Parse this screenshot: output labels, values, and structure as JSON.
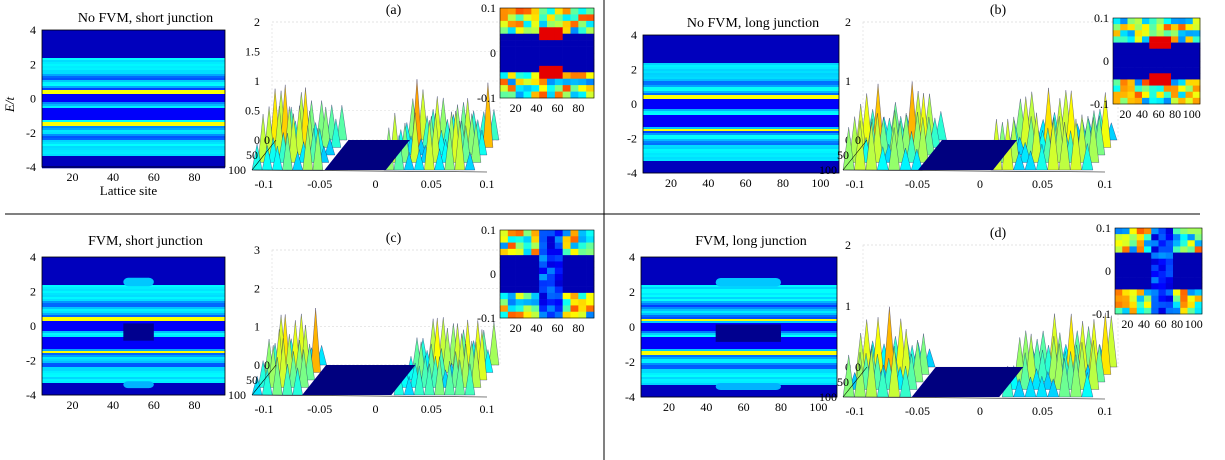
{
  "figure": {
    "panels": [
      {
        "key": "a",
        "panel_label": "(a)",
        "heatmap_title": "No FVM, short junction",
        "heatmap_ylabel": "E/t",
        "heatmap_xlabel": "Lattice site",
        "heatmap_xticks": [
          "20",
          "40",
          "60",
          "80"
        ],
        "heatmap_yticks": [
          "4",
          "2",
          "0",
          "-2",
          "-4"
        ],
        "surface_zticks": [
          "2",
          "1.5",
          "1",
          "0.5",
          "0"
        ],
        "surface_depth_ticks": [
          "0",
          "50",
          "100"
        ],
        "surface_xticks": [
          "-0.1",
          "-0.05",
          "0",
          "0.05",
          "0.1"
        ],
        "inset_yticks": [
          "0.1",
          "0",
          "-0.1"
        ],
        "inset_xticks": [
          "20",
          "40",
          "60",
          "80"
        ]
      },
      {
        "key": "b",
        "panel_label": "(b)",
        "heatmap_title": "No FVM, long junction",
        "heatmap_ylabel": "",
        "heatmap_xlabel": "",
        "heatmap_xticks": [
          "20",
          "40",
          "60",
          "80",
          "100"
        ],
        "heatmap_yticks": [
          "4",
          "2",
          "0",
          "-2",
          "-4"
        ],
        "surface_zticks": [
          "2",
          "1",
          "0"
        ],
        "surface_depth_ticks": [
          "0",
          "50",
          "100"
        ],
        "surface_xticks": [
          "-0.1",
          "-0.05",
          "0",
          "0.05",
          "0.1"
        ],
        "inset_yticks": [
          "0.1",
          "0",
          "-0.1"
        ],
        "inset_xticks": [
          "20",
          "40",
          "60",
          "80",
          "100"
        ]
      },
      {
        "key": "c",
        "panel_label": "(c)",
        "heatmap_title": "FVM, short junction",
        "heatmap_ylabel": "",
        "heatmap_xlabel": "",
        "heatmap_xticks": [
          "20",
          "40",
          "60",
          "80"
        ],
        "heatmap_yticks": [
          "4",
          "2",
          "0",
          "-2",
          "-4"
        ],
        "surface_zticks": [
          "3",
          "2",
          "1",
          "0"
        ],
        "surface_depth_ticks": [
          "0",
          "50",
          "100"
        ],
        "surface_xticks": [
          "-0.1",
          "-0.05",
          "0",
          "0.05",
          "0.1"
        ],
        "inset_yticks": [
          "0.1",
          "0",
          "-0.1"
        ],
        "inset_xticks": [
          "20",
          "40",
          "60",
          "80"
        ]
      },
      {
        "key": "d",
        "panel_label": "(d)",
        "heatmap_title": "FVM, long junction",
        "heatmap_ylabel": "",
        "heatmap_xlabel": "",
        "heatmap_xticks": [
          "20",
          "40",
          "60",
          "80",
          "100"
        ],
        "heatmap_yticks": [
          "4",
          "2",
          "0",
          "-2",
          "-4"
        ],
        "surface_zticks": [
          "2",
          "1",
          "0"
        ],
        "surface_depth_ticks": [
          "0",
          "50",
          "100"
        ],
        "surface_xticks": [
          "-0.1",
          "-0.05",
          "0",
          "0.05",
          "0.1"
        ],
        "inset_yticks": [
          "0.1",
          "0",
          "-0.1"
        ],
        "inset_xticks": [
          "20",
          "40",
          "60",
          "80",
          "100"
        ]
      }
    ]
  },
  "chart_data": [
    {
      "type": "heatmap",
      "panel": "a",
      "title": "No FVM, short junction",
      "xlabel": "Lattice site",
      "ylabel": "E/t",
      "xlim": [
        5,
        95
      ],
      "ylim": [
        -4,
        4
      ],
      "bright_lines_E": [
        0.4,
        -1.5
      ],
      "continuum_edges_E": [
        2.4,
        -3.3
      ],
      "colormap": [
        "#00007f",
        "#0000ff",
        "#00ffff",
        "#ffff00",
        "#ff0000",
        "#7f0000"
      ]
    },
    {
      "type": "surface",
      "panel": "a",
      "xlim": [
        -0.1,
        0.1
      ],
      "depth_lim": [
        0,
        100
      ],
      "zlim": [
        0,
        2
      ],
      "gap": [
        -0.035,
        0.02
      ]
    },
    {
      "type": "heatmap",
      "panel": "a-inset",
      "xlim": [
        5,
        95
      ],
      "ylim": [
        -0.1,
        0.1
      ]
    },
    {
      "type": "heatmap",
      "panel": "b",
      "title": "No FVM, long junction",
      "xlabel": "",
      "ylabel": "",
      "xlim": [
        5,
        110
      ],
      "ylim": [
        -4,
        4
      ],
      "bright_lines_E": [
        0.4,
        -1.5
      ],
      "continuum_edges_E": [
        2.4,
        -3.3
      ]
    },
    {
      "type": "surface",
      "panel": "b",
      "xlim": [
        -0.1,
        0.1
      ],
      "depth_lim": [
        0,
        100
      ],
      "zlim": [
        0,
        2
      ],
      "gap": [
        -0.04,
        0.02
      ]
    },
    {
      "type": "heatmap",
      "panel": "b-inset",
      "xlim": [
        5,
        110
      ],
      "ylim": [
        -0.1,
        0.1
      ]
    },
    {
      "type": "heatmap",
      "panel": "c",
      "title": "FVM, short junction",
      "xlabel": "",
      "ylabel": "",
      "xlim": [
        5,
        95
      ],
      "ylim": [
        -4,
        4
      ],
      "bright_lines_E": [
        0.4,
        -1.5
      ],
      "continuum_edges_E": [
        2.4,
        -3.3
      ],
      "junction_sites": [
        45,
        60
      ]
    },
    {
      "type": "surface",
      "panel": "c",
      "xlim": [
        -0.1,
        0.1
      ],
      "depth_lim": [
        0,
        100
      ],
      "zlim": [
        0,
        3
      ],
      "gap": [
        -0.055,
        0.025
      ]
    },
    {
      "type": "heatmap",
      "panel": "c-inset",
      "xlim": [
        5,
        95
      ],
      "ylim": [
        -0.1,
        0.1
      ]
    },
    {
      "type": "heatmap",
      "panel": "d",
      "title": "FVM, long junction",
      "xlabel": "",
      "ylabel": "",
      "xlim": [
        5,
        110
      ],
      "ylim": [
        -4,
        4
      ],
      "bright_lines_E": [
        0.4,
        -1.5
      ],
      "continuum_edges_E": [
        2.4,
        -3.3
      ],
      "junction_sites": [
        45,
        80
      ]
    },
    {
      "type": "surface",
      "panel": "d",
      "xlim": [
        -0.1,
        0.1
      ],
      "depth_lim": [
        0,
        100
      ],
      "zlim": [
        0,
        2
      ],
      "gap": [
        -0.045,
        0.025
      ]
    },
    {
      "type": "heatmap",
      "panel": "d-inset",
      "xlim": [
        5,
        110
      ],
      "ylim": [
        -0.1,
        0.1
      ]
    }
  ]
}
